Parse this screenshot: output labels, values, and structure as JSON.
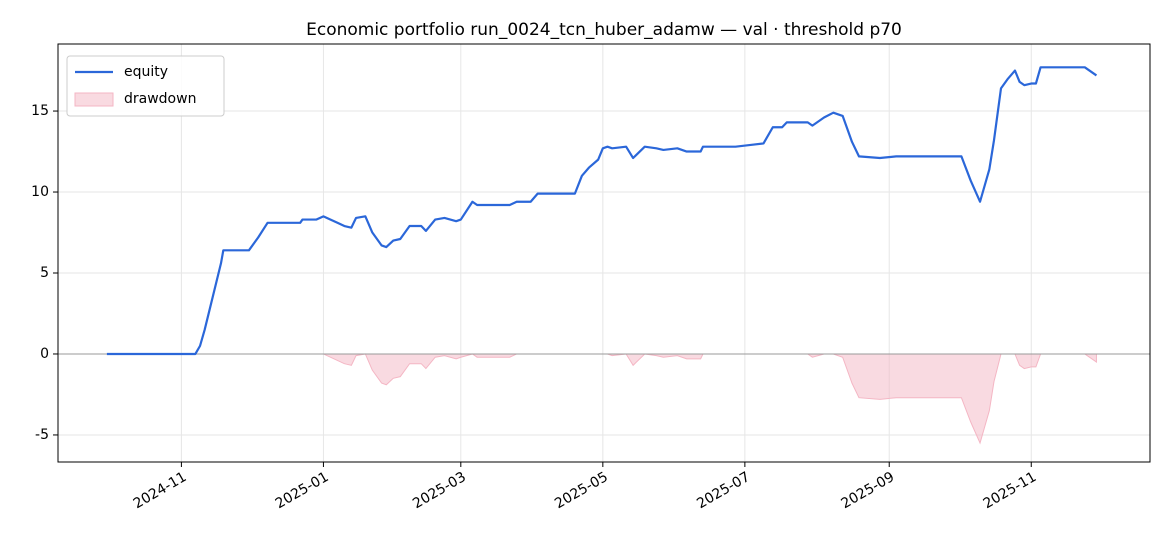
{
  "chart_data": {
    "type": "line",
    "title": "Economic portfolio run_0024_tcn_huber_adamw — val · threshold p70",
    "x": [
      "2024-09-30",
      "2024-11-07",
      "2024-11-09",
      "2024-11-11",
      "2024-11-18",
      "2024-11-19",
      "2024-11-30",
      "2024-12-04",
      "2024-12-08",
      "2024-12-22",
      "2024-12-23",
      "2024-12-29",
      "2025-01-01",
      "2025-01-07",
      "2025-01-10",
      "2025-01-13",
      "2025-01-15",
      "2025-01-19",
      "2025-01-22",
      "2025-01-26",
      "2025-01-28",
      "2025-01-31",
      "2025-02-03",
      "2025-02-07",
      "2025-02-12",
      "2025-02-14",
      "2025-02-18",
      "2025-02-22",
      "2025-02-27",
      "2025-03-01",
      "2025-03-06",
      "2025-03-08",
      "2025-03-17",
      "2025-03-22",
      "2025-03-25",
      "2025-03-31",
      "2025-04-03",
      "2025-04-19",
      "2025-04-22",
      "2025-04-25",
      "2025-04-29",
      "2025-05-01",
      "2025-05-03",
      "2025-05-05",
      "2025-05-11",
      "2025-05-14",
      "2025-05-19",
      "2025-05-24",
      "2025-05-27",
      "2025-06-02",
      "2025-06-06",
      "2025-06-12",
      "2025-06-13",
      "2025-06-27",
      "2025-07-03",
      "2025-07-09",
      "2025-07-13",
      "2025-07-17",
      "2025-07-19",
      "2025-07-28",
      "2025-07-30",
      "2025-08-04",
      "2025-08-08",
      "2025-08-12",
      "2025-08-16",
      "2025-08-19",
      "2025-08-28",
      "2025-09-04",
      "2025-10-02",
      "2025-10-06",
      "2025-10-10",
      "2025-10-14",
      "2025-10-16",
      "2025-10-19",
      "2025-10-22",
      "2025-10-25",
      "2025-10-27",
      "2025-10-29",
      "2025-11-01",
      "2025-11-03",
      "2025-11-05",
      "2025-11-24",
      "2025-11-26",
      "2025-11-29"
    ],
    "series": [
      {
        "name": "equity",
        "style": "line",
        "color": "#2b67d9",
        "values": [
          0,
          0,
          0.5,
          1.5,
          5.6,
          6.4,
          6.4,
          7.2,
          8.1,
          8.1,
          8.3,
          8.3,
          8.5,
          8.1,
          7.9,
          7.8,
          8.4,
          8.5,
          7.5,
          6.7,
          6.6,
          7.0,
          7.1,
          7.9,
          7.9,
          7.6,
          8.3,
          8.4,
          8.2,
          8.3,
          9.4,
          9.2,
          9.2,
          9.2,
          9.4,
          9.4,
          9.9,
          9.9,
          11.0,
          11.5,
          12.0,
          12.7,
          12.8,
          12.7,
          12.8,
          12.1,
          12.8,
          12.7,
          12.6,
          12.7,
          12.5,
          12.5,
          12.8,
          12.8,
          12.9,
          13.0,
          14.0,
          14.0,
          14.3,
          14.3,
          14.1,
          14.6,
          14.9,
          14.7,
          13.1,
          12.2,
          12.1,
          12.2,
          12.2,
          10.7,
          9.4,
          11.4,
          13.2,
          16.4,
          17.0,
          17.5,
          16.8,
          16.6,
          16.7,
          16.7,
          17.7,
          17.7,
          17.5,
          17.2
        ]
      },
      {
        "name": "drawdown",
        "style": "area",
        "color": "#f4b6c4",
        "values": [
          0,
          0,
          0,
          0,
          0,
          0,
          0,
          0,
          0,
          0,
          0,
          0,
          0,
          -0.4,
          -0.6,
          -0.7,
          -0.1,
          0,
          -1.0,
          -1.8,
          -1.9,
          -1.5,
          -1.4,
          -0.6,
          -0.6,
          -0.9,
          -0.2,
          -0.1,
          -0.3,
          -0.2,
          0,
          -0.2,
          -0.2,
          -0.2,
          0,
          0,
          0,
          0,
          0,
          0,
          0,
          0,
          0,
          -0.1,
          0,
          -0.7,
          0,
          -0.1,
          -0.2,
          -0.1,
          -0.3,
          -0.3,
          0,
          0,
          0,
          0,
          0,
          0,
          0,
          0,
          -0.2,
          0,
          0,
          -0.2,
          -1.8,
          -2.7,
          -2.8,
          -2.7,
          -2.7,
          -4.2,
          -5.5,
          -3.5,
          -1.7,
          0,
          0,
          0,
          -0.7,
          -0.9,
          -0.8,
          -0.8,
          0,
          0,
          -0.2,
          -0.5
        ]
      }
    ],
    "xlim": [
      "2024-09-09",
      "2025-12-22"
    ],
    "xticks": [
      "2024-11",
      "2025-01",
      "2025-03",
      "2025-05",
      "2025-07",
      "2025-09",
      "2025-11"
    ],
    "ylim": [
      -6.67,
      19.14
    ],
    "yticks": [
      -5,
      0,
      5,
      10,
      15
    ],
    "grid": true,
    "legend": "upper-left"
  }
}
